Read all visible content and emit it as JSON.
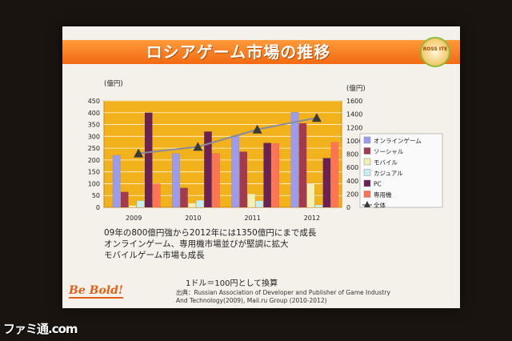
{
  "slide": {
    "title": "ロシアゲーム市場の推移",
    "logo_text": "ROSS ITE",
    "notes": [
      "09年の800億円強から2012年には1350億円にまで成長",
      "オンラインゲーム、専用機市場並びが堅調に拡大",
      "モバイルゲーム市場も成長"
    ],
    "rate_note": "1ドル＝100円として換算",
    "source_line1": "出典：Russian Association of Developer and Publisher of Game Industry",
    "source_line2": "And Technology(2009), Mail.ru Group (2010-2012)",
    "bebold": "Be Bold!"
  },
  "watermark": "ファミ通.com",
  "chart_data": {
    "type": "bar",
    "categories": [
      "2009",
      "2010",
      "2011",
      "2012"
    ],
    "left_axis_label": "(億円)",
    "right_axis_label": "(億円)",
    "ylim_left": [
      0,
      450
    ],
    "yticks_left": [
      0,
      50,
      100,
      150,
      200,
      250,
      300,
      350,
      400,
      450
    ],
    "ylim_right": [
      0,
      1600
    ],
    "yticks_right": [
      0,
      200,
      400,
      600,
      800,
      1000,
      1200,
      1400,
      1600
    ],
    "series": [
      {
        "name": "オンラインゲーム",
        "color": "#9b9bf0",
        "values": [
          220,
          228,
          303,
          402
        ]
      },
      {
        "name": "ソーシャル",
        "color": "#a33a52",
        "values": [
          65,
          82,
          235,
          355
        ]
      },
      {
        "name": "モバイル",
        "color": "#f2f0b6",
        "values": [
          8,
          18,
          57,
          100
        ]
      },
      {
        "name": "カジュアル",
        "color": "#c9eef0",
        "values": [
          28,
          30,
          28,
          10
        ]
      },
      {
        "name": "PC",
        "color": "#6a2155",
        "values": [
          400,
          320,
          272,
          208
        ]
      },
      {
        "name": "専用機",
        "color": "#ff7454",
        "values": [
          100,
          228,
          270,
          275
        ]
      }
    ],
    "total": {
      "name": "全体",
      "axis": "right",
      "color": "#3a3a3a",
      "values": [
        810,
        910,
        1170,
        1345
      ]
    },
    "plot_background": "#f2b21c",
    "grid": true,
    "legend_position": "right"
  }
}
